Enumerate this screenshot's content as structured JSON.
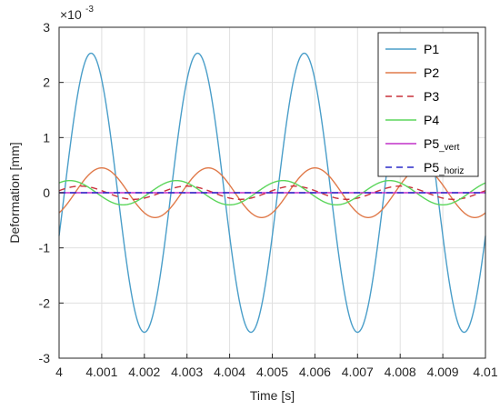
{
  "chart_data": {
    "type": "line",
    "title": "",
    "xlabel": "Time [s]",
    "ylabel": "Deformation [mm]",
    "xlim": [
      4,
      4.01
    ],
    "ylim": [
      -0.003,
      0.003
    ],
    "y_exponent_label": "×10",
    "y_exponent_power": "-3",
    "grid": true,
    "legend_position": "top-right",
    "xticks": [
      4,
      4.001,
      4.002,
      4.003,
      4.004,
      4.005,
      4.006,
      4.007,
      4.008,
      4.009,
      4.01
    ],
    "xtick_labels": [
      "4",
      "4.001",
      "4.002",
      "4.003",
      "4.004",
      "4.005",
      "4.006",
      "4.007",
      "4.008",
      "4.009",
      "4.01"
    ],
    "yticks": [
      -3,
      -2,
      -1,
      0,
      1,
      2,
      3
    ],
    "ytick_labels": [
      "-3",
      "-2",
      "-1",
      "0",
      "1",
      "2",
      "3"
    ],
    "series": [
      {
        "name": "P1",
        "sub": "",
        "color": "#4a9ec9",
        "dash": "solid",
        "amplitude": 0.00253,
        "period": 0.0025,
        "peak_time": 4.00075
      },
      {
        "name": "P2",
        "sub": "",
        "color": "#e07a4a",
        "dash": "solid",
        "amplitude": 0.00045,
        "period": 0.0025,
        "peak_time": 4.001
      },
      {
        "name": "P3",
        "sub": "",
        "color": "#c8323c",
        "dash": "dashed",
        "amplitude": 0.00012,
        "period": 0.0025,
        "peak_time": 4.0005
      },
      {
        "name": "P4",
        "sub": "",
        "color": "#5cd65c",
        "dash": "solid",
        "amplitude": 0.00022,
        "period": 0.0025,
        "peak_time": 4.00025
      },
      {
        "name": "P5",
        "sub": "_vert",
        "color": "#c030c8",
        "dash": "solid",
        "amplitude": 0.0,
        "period": 0.0025,
        "peak_time": 4.0
      },
      {
        "name": "P5",
        "sub": "_horiz",
        "color": "#2a2ac8",
        "dash": "dashed",
        "amplitude": 0.0,
        "period": 0.0025,
        "peak_time": 4.0
      }
    ]
  }
}
